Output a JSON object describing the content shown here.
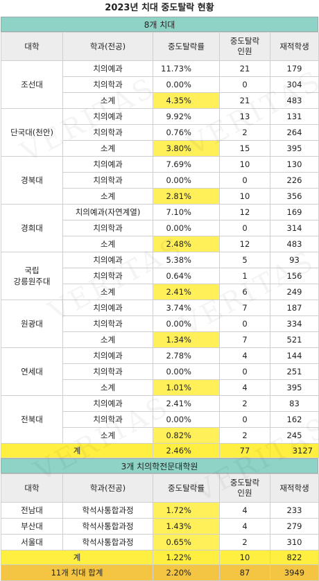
{
  "title": "2023년 치대 중도탈락 현황",
  "section1": {
    "heading": "8개 치대",
    "headers": [
      "대학",
      "학과(전공)",
      "중도탈락률",
      "중도탈락\n인원",
      "재적학생"
    ],
    "groups": [
      {
        "university": "조선대",
        "rows": [
          {
            "dept": "치의예과",
            "rate": "11.73%",
            "count": "21",
            "enrolled": "179"
          },
          {
            "dept": "치의학과",
            "rate": "0.00%",
            "count": "0",
            "enrolled": "304"
          },
          {
            "dept": "소계",
            "rate": "4.35%",
            "count": "21",
            "enrolled": "483"
          }
        ]
      },
      {
        "university": "단국대(천안)",
        "rows": [
          {
            "dept": "치의예과",
            "rate": "9.92%",
            "count": "13",
            "enrolled": "131"
          },
          {
            "dept": "치의학과",
            "rate": "0.76%",
            "count": "2",
            "enrolled": "264"
          },
          {
            "dept": "소계",
            "rate": "3.80%",
            "count": "15",
            "enrolled": "395"
          }
        ]
      },
      {
        "university": "경북대",
        "rows": [
          {
            "dept": "치의예과",
            "rate": "7.69%",
            "count": "10",
            "enrolled": "130"
          },
          {
            "dept": "치의학과",
            "rate": "0.00%",
            "count": "0",
            "enrolled": "226"
          },
          {
            "dept": "소계",
            "rate": "2.81%",
            "count": "10",
            "enrolled": "356"
          }
        ]
      },
      {
        "university": "경희대",
        "rows": [
          {
            "dept": "치의예과(자연계열)",
            "rate": "7.10%",
            "count": "12",
            "enrolled": "169"
          },
          {
            "dept": "치의학과",
            "rate": "0.00%",
            "count": "0",
            "enrolled": "314"
          },
          {
            "dept": "소계",
            "rate": "2.48%",
            "count": "12",
            "enrolled": "483"
          }
        ]
      },
      {
        "university": "국립\n강릉원주대",
        "rows": [
          {
            "dept": "치의예과",
            "rate": "5.38%",
            "count": "5",
            "enrolled": "93"
          },
          {
            "dept": "치의학과",
            "rate": "0.64%",
            "count": "1",
            "enrolled": "156"
          },
          {
            "dept": "소계",
            "rate": "2.41%",
            "count": "6",
            "enrolled": "249"
          }
        ]
      },
      {
        "university": "원광대",
        "rows": [
          {
            "dept": "치의예과",
            "rate": "3.74%",
            "count": "7",
            "enrolled": "187"
          },
          {
            "dept": "치의학과",
            "rate": "0.00%",
            "count": "0",
            "enrolled": "334"
          },
          {
            "dept": "소계",
            "rate": "1.34%",
            "count": "7",
            "enrolled": "521"
          }
        ]
      },
      {
        "university": "연세대",
        "rows": [
          {
            "dept": "치의예과",
            "rate": "2.78%",
            "count": "4",
            "enrolled": "144"
          },
          {
            "dept": "치의학과",
            "rate": "0.00%",
            "count": "0",
            "enrolled": "251"
          },
          {
            "dept": "소계",
            "rate": "1.01%",
            "count": "4",
            "enrolled": "395"
          }
        ]
      },
      {
        "university": "전북대",
        "rows": [
          {
            "dept": "치의예과",
            "rate": "2.41%",
            "count": "2",
            "enrolled": "83"
          },
          {
            "dept": "치의학과",
            "rate": "0.00%",
            "count": "0",
            "enrolled": "162"
          },
          {
            "dept": "소계",
            "rate": "0.82%",
            "count": "2",
            "enrolled": "245"
          }
        ]
      }
    ],
    "total": {
      "label": "계",
      "rate": "2.46%",
      "count": "77",
      "enrolled": "3127"
    }
  },
  "section2": {
    "heading": "3개 치의학전문대학원",
    "headers": [
      "대학",
      "학과(전공)",
      "중도탈락률",
      "중도탈락\n인원",
      "재적학생"
    ],
    "rows": [
      {
        "university": "전남대",
        "dept": "학석사통합과정",
        "rate": "1.72%",
        "count": "4",
        "enrolled": "233"
      },
      {
        "university": "부산대",
        "dept": "학석사통합과정",
        "rate": "1.43%",
        "count": "4",
        "enrolled": "279"
      },
      {
        "university": "서울대",
        "dept": "학석사통합과정",
        "rate": "0.65%",
        "count": "2",
        "enrolled": "310"
      }
    ],
    "total": {
      "label": "계",
      "rate": "1.22%",
      "count": "10",
      "enrolled": "822"
    }
  },
  "grand_total": {
    "label": "11개 치대 합계",
    "rate": "2.20%",
    "count": "87",
    "enrolled": "3949"
  },
  "watermark": "VERITAS",
  "colors": {
    "section_header": "#8fd3c6",
    "highlight": "#fff05a",
    "total_row": "#ffef40",
    "grand_total_row": "#f4c542",
    "header_row": "#ededed"
  }
}
